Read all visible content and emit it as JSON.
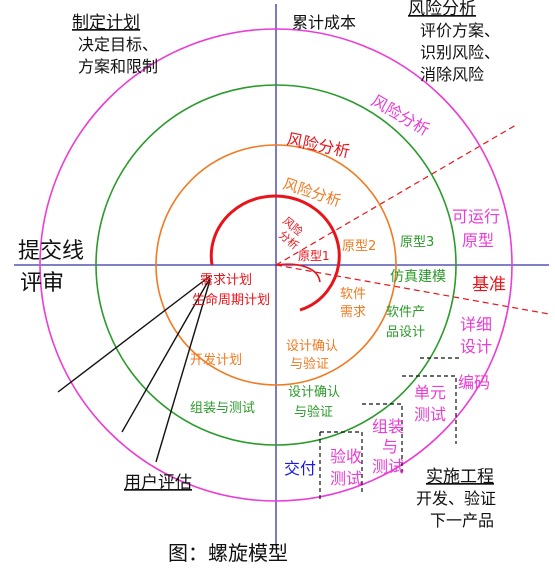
{
  "quadrants": {
    "top_left_title": "制定计划",
    "top_left_line1": "决定目标、",
    "top_left_line2": "方案和限制",
    "top_center": "累计成本",
    "top_right_title": "风险分析",
    "top_right_line1": "评价方案、",
    "top_right_line2": "识别风险、",
    "top_right_line3": "消除风险",
    "left_top": "提交线",
    "left_bottom": "评审",
    "bottom_left": "用户评估",
    "bottom_right_title": "实施工程",
    "bottom_right_line1": "开发、验证",
    "bottom_right_line2": "下一产品"
  },
  "loop_labels": {
    "risk_outer": "风险分析",
    "risk_mid": "风险分析",
    "risk_inner": "风险分析",
    "risk_core_1": "风险",
    "risk_core_2": "分析",
    "prototype_1": "原型1",
    "prototype_2": "原型2",
    "prototype_3": "原型3",
    "operational_1": "可运行",
    "operational_2": "原型",
    "simulation": "仿真建模",
    "baseline": "基准",
    "req_plan": "需求计划",
    "lifecycle_plan": "生命周期计划",
    "sw_req_1": "软件",
    "sw_req_2": "需求",
    "product_design_1": "软件产",
    "product_design_2": "品设计",
    "detail_design_1": "详细",
    "detail_design_2": "设计",
    "dev_plan": "开发计划",
    "design_verify_1": "设计确认",
    "design_verify_2": "与验证",
    "design_verify_b1": "设计确认",
    "design_verify_b2": "与验证",
    "integration_test": "组装与测试",
    "coding": "编码",
    "unit_test_1": "单元",
    "unit_test_2": "测试",
    "integ_test_1": "组装",
    "integ_test_2": "与",
    "integ_test_3": "测试",
    "acceptance_1": "验收",
    "acceptance_2": "测试",
    "delivery": "交付"
  },
  "caption": "图：螺旋模型",
  "colors": {
    "axis": "#3333aa",
    "inner": "#e8141a",
    "orange": "#f07a22",
    "green": "#2a9a2a",
    "magenta": "#ea3cd6",
    "text": "#111111",
    "blue": "#1a1adf"
  }
}
